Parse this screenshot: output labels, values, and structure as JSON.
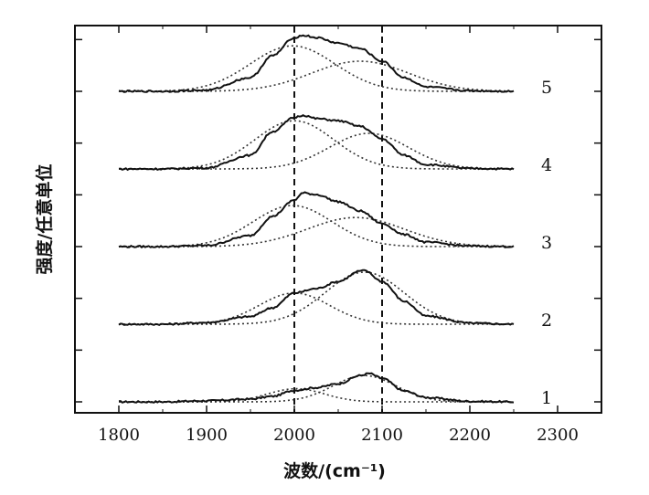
{
  "chart_data": {
    "type": "line",
    "title": "",
    "xlabel": "波数/(cm⁻¹)",
    "ylabel": "强度/任意单位",
    "xlim": [
      1750,
      2350
    ],
    "x_ticks": [
      1800,
      1900,
      2000,
      2100,
      2200,
      2300
    ],
    "x_tick_labels": [
      "1800",
      "1900",
      "2000",
      "2100",
      "2200",
      "2300"
    ],
    "reference_lines_x": [
      2000,
      2100
    ],
    "grid": false,
    "series": [
      {
        "name": "1",
        "offset": 0.0,
        "total": {
          "x": [
            1800,
            1850,
            1900,
            1950,
            1975,
            2000,
            2025,
            2050,
            2075,
            2085,
            2100,
            2125,
            2150,
            2200,
            2250
          ],
          "y": [
            0.0,
            0.0,
            0.02,
            0.05,
            0.1,
            0.21,
            0.26,
            0.33,
            0.48,
            0.52,
            0.43,
            0.2,
            0.08,
            0.01,
            0.0
          ]
        },
        "components": [
          {
            "center": 2002,
            "height": 0.24,
            "width": 32
          },
          {
            "center": 2080,
            "height": 0.48,
            "width": 36
          }
        ]
      },
      {
        "name": "2",
        "offset": 1.0,
        "total": {
          "x": [
            1800,
            1850,
            1900,
            1950,
            1975,
            2000,
            2025,
            2050,
            2075,
            2080,
            2100,
            2125,
            2150,
            2200,
            2250
          ],
          "y": [
            0.0,
            0.0,
            0.03,
            0.14,
            0.3,
            0.57,
            0.65,
            0.78,
            0.97,
            0.98,
            0.78,
            0.42,
            0.15,
            0.02,
            0.0
          ]
        },
        "components": [
          {
            "center": 2000,
            "height": 0.57,
            "width": 40
          },
          {
            "center": 2080,
            "height": 0.95,
            "width": 45
          }
        ]
      },
      {
        "name": "3",
        "offset": 2.0,
        "total": {
          "x": [
            1800,
            1850,
            1900,
            1950,
            1975,
            2000,
            2010,
            2025,
            2050,
            2075,
            2100,
            2125,
            2150,
            2200,
            2250
          ],
          "y": [
            0.0,
            0.0,
            0.02,
            0.2,
            0.55,
            0.85,
            0.98,
            0.95,
            0.82,
            0.65,
            0.42,
            0.22,
            0.08,
            0.01,
            0.0
          ]
        },
        "components": [
          {
            "center": 1998,
            "height": 0.75,
            "width": 45
          },
          {
            "center": 2070,
            "height": 0.53,
            "width": 55
          }
        ]
      },
      {
        "name": "4",
        "offset": 3.0,
        "total": {
          "x": [
            1800,
            1850,
            1900,
            1950,
            1975,
            2000,
            2010,
            2025,
            2050,
            2075,
            2100,
            2125,
            2150,
            2200,
            2250
          ],
          "y": [
            0.0,
            0.0,
            0.02,
            0.25,
            0.68,
            0.94,
            0.98,
            0.92,
            0.88,
            0.78,
            0.55,
            0.25,
            0.08,
            0.01,
            0.0
          ]
        },
        "components": [
          {
            "center": 2000,
            "height": 0.88,
            "width": 45
          },
          {
            "center": 2085,
            "height": 0.65,
            "width": 45
          }
        ]
      },
      {
        "name": "5",
        "offset": 4.0,
        "total": {
          "x": [
            1800,
            1850,
            1900,
            1950,
            1975,
            2000,
            2010,
            2025,
            2050,
            2075,
            2100,
            2125,
            2150,
            2200,
            2250
          ],
          "y": [
            0.0,
            0.0,
            0.02,
            0.25,
            0.65,
            0.98,
            1.02,
            0.98,
            0.88,
            0.78,
            0.55,
            0.25,
            0.08,
            0.01,
            0.0
          ]
        },
        "components": [
          {
            "center": 1998,
            "height": 0.83,
            "width": 48
          },
          {
            "center": 2075,
            "height": 0.55,
            "width": 55
          }
        ]
      }
    ]
  }
}
